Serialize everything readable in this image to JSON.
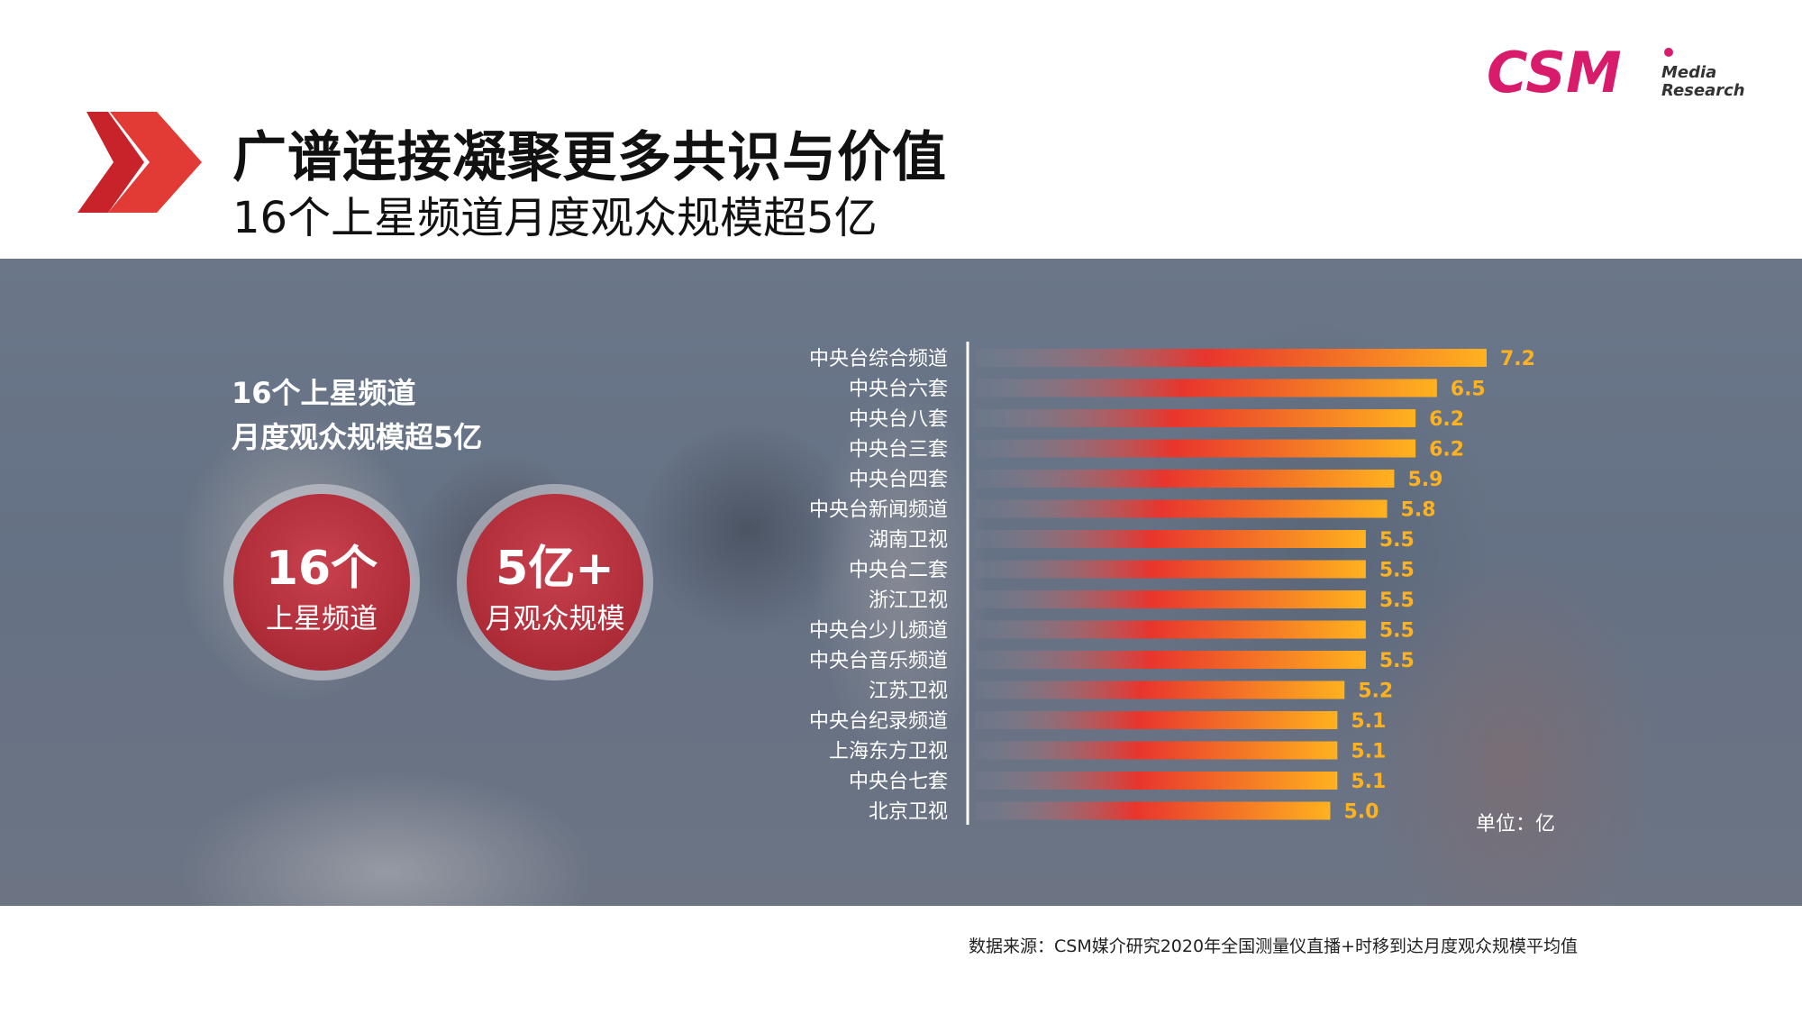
{
  "header": {
    "title": "广谱连接凝聚更多共识与价值",
    "subtitle": "16个上星频道月度观众规模超5亿",
    "logo": {
      "mark": "CSM",
      "text_line1": "Media",
      "text_line2": "Research",
      "color": "#d81b6a"
    }
  },
  "overlay": {
    "line1": "16个上星频道",
    "line2": "月度观众规模超5亿",
    "stats": [
      {
        "big": "16个",
        "small": "上星频道"
      },
      {
        "big": "5亿+",
        "small": "月观众规模"
      }
    ]
  },
  "chart_data": {
    "type": "bar",
    "orientation": "horizontal",
    "categories": [
      "中央台综合频道",
      "中央台六套",
      "中央台八套",
      "中央台三套",
      "中央台四套",
      "中央台新闻频道",
      "湖南卫视",
      "中央台二套",
      "浙江卫视",
      "中央台少儿频道",
      "中央台音乐频道",
      "江苏卫视",
      "中央台纪录频道",
      "上海东方卫视",
      "中央台七套",
      "北京卫视"
    ],
    "values": [
      7.2,
      6.5,
      6.2,
      6.2,
      5.9,
      5.8,
      5.5,
      5.5,
      5.5,
      5.5,
      5.5,
      5.2,
      5.1,
      5.1,
      5.1,
      5.0
    ],
    "value_labels": [
      "7.2",
      "6.5",
      "6.2",
      "6.2",
      "5.9",
      "5.8",
      "5.5",
      "5.5",
      "5.5",
      "5.5",
      "5.5",
      "5.2",
      "5.1",
      "5.1",
      "5.1",
      "5.0"
    ],
    "unit_label": "单位：亿",
    "xlim": [
      0,
      7.2
    ],
    "grid": false,
    "colors": {
      "fade": "#8a93a3",
      "mid": "#e8352d",
      "end": "#ffb21f",
      "label": "#ffb21f"
    }
  },
  "footer": {
    "source": "数据来源：CSM媒介研究2020年全国测量仪直播+时移到达月度观众规模平均值"
  }
}
